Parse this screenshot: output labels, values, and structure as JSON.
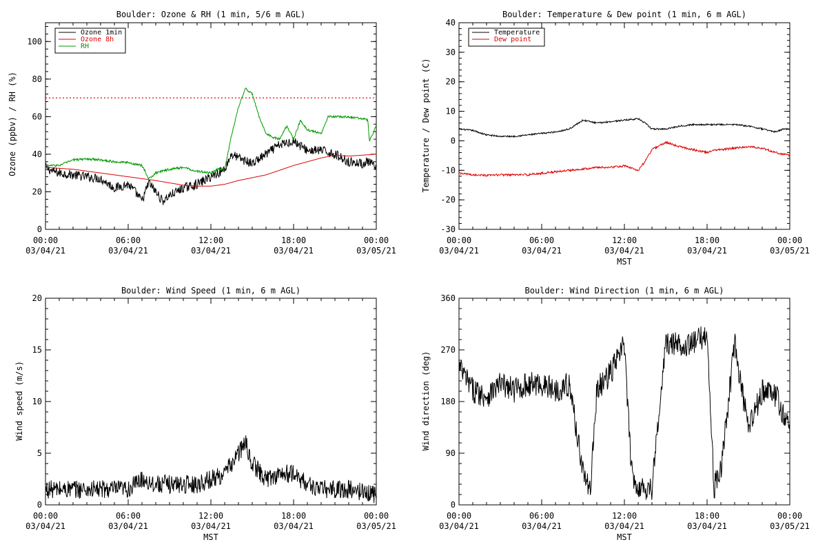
{
  "colors": {
    "black": "#000000",
    "red": "#dd0000",
    "green": "#009900",
    "threshold": "#ee0000"
  },
  "chart_data": [
    {
      "id": "ozone",
      "type": "line",
      "title": "Boulder: Ozone & RH (1 min, 5/6 m AGL)",
      "xlabel": "",
      "ylabel": "Ozone (ppbv) / RH (%)",
      "xlim": [
        0,
        24
      ],
      "ylim": [
        0,
        110
      ],
      "yticks": [
        0,
        20,
        40,
        60,
        80,
        100
      ],
      "xtick_positions": [
        0,
        6,
        12,
        18,
        24
      ],
      "xtick_labels": [
        [
          "00:00",
          "03/04/21"
        ],
        [
          "06:00",
          "03/04/21"
        ],
        [
          "12:00",
          "03/04/21"
        ],
        [
          "18:00",
          "03/04/21"
        ],
        [
          "00:00",
          "03/05/21"
        ]
      ],
      "legend": "top-left",
      "reference_line": {
        "y": 70,
        "color": "#ee0000",
        "style": "dotted"
      },
      "series": [
        {
          "name": "Ozone 1min",
          "color": "#000000",
          "noise": 2.5,
          "width": 1,
          "x": [
            0,
            0.5,
            1,
            2,
            3,
            4,
            5,
            6,
            6.5,
            7,
            7.5,
            8,
            8.5,
            9,
            9.5,
            10,
            11,
            12,
            13,
            13.5,
            14,
            15,
            16,
            17,
            18,
            19,
            20,
            21,
            22,
            23,
            23.5,
            24
          ],
          "y": [
            33,
            31,
            30,
            29,
            28,
            27,
            22,
            24,
            20,
            15,
            25,
            20,
            15,
            18,
            20,
            22,
            24,
            28,
            32,
            40,
            38,
            35,
            40,
            45,
            47,
            42,
            42,
            40,
            36,
            35,
            36,
            32
          ]
        },
        {
          "name": "Ozone 8h",
          "color": "#dd0000",
          "noise": 0,
          "width": 1,
          "x": [
            0,
            2,
            4,
            6,
            8,
            10,
            11,
            12,
            13,
            14,
            16,
            18,
            20,
            21,
            22,
            23,
            24
          ],
          "y": [
            33,
            32,
            30,
            28,
            26,
            23.5,
            23,
            23,
            24,
            26,
            29,
            34,
            38,
            39.5,
            39,
            39.5,
            40
          ]
        },
        {
          "name": "RH",
          "color": "#009900",
          "noise": 0.6,
          "width": 1,
          "x": [
            0,
            1,
            2,
            3,
            4,
            5,
            6,
            7,
            7.5,
            8,
            9,
            10,
            11,
            12,
            12.5,
            13,
            13.5,
            14,
            14.5,
            15,
            15.5,
            16,
            16.5,
            17,
            17.5,
            18,
            18.5,
            19,
            19.5,
            20,
            20.5,
            21,
            22,
            23,
            23.4,
            23.5,
            24
          ],
          "y": [
            34,
            34,
            37,
            37.5,
            37,
            36,
            35.5,
            34,
            27,
            30,
            32,
            33,
            31,
            30,
            32,
            32,
            50,
            65,
            75,
            72,
            60,
            51,
            49,
            48,
            55,
            48,
            58,
            53,
            52,
            51,
            60,
            60,
            60,
            59,
            58,
            47,
            55
          ]
        }
      ]
    },
    {
      "id": "temp",
      "type": "line",
      "title": "Boulder: Temperature & Dew point (1 min, 6 m AGL)",
      "xlabel": "MST",
      "ylabel": "Temperature / Dew point (C)",
      "xlim": [
        0,
        24
      ],
      "ylim": [
        -30,
        40
      ],
      "yticks": [
        -30,
        -20,
        -10,
        0,
        10,
        20,
        30,
        40
      ],
      "xtick_positions": [
        0,
        6,
        12,
        18,
        24
      ],
      "xtick_labels": [
        [
          "00:00",
          "03/04/21"
        ],
        [
          "06:00",
          "03/04/21"
        ],
        [
          "12:00",
          "03/04/21"
        ],
        [
          "18:00",
          "03/04/21"
        ],
        [
          "00:00",
          "03/05/21"
        ]
      ],
      "legend": "top-left",
      "series": [
        {
          "name": "Temperature",
          "color": "#000000",
          "noise": 0.25,
          "width": 1,
          "x": [
            0,
            1,
            2,
            3,
            4,
            5,
            6,
            7,
            8,
            9,
            10,
            11,
            12,
            13,
            13.5,
            14,
            15,
            16,
            17,
            18,
            19,
            20,
            21,
            22,
            23,
            23.5,
            24
          ],
          "y": [
            4,
            3.5,
            2,
            1.5,
            1.5,
            2,
            2.5,
            3,
            4,
            7,
            6,
            6.5,
            7,
            7.5,
            6,
            4,
            4,
            5,
            5.5,
            5.5,
            5.5,
            5.5,
            5,
            4,
            3,
            4,
            4
          ]
        },
        {
          "name": "Dew point",
          "color": "#dd0000",
          "noise": 0.35,
          "width": 1,
          "x": [
            0,
            1,
            2,
            3,
            4,
            5,
            6,
            7,
            8,
            9,
            10,
            11,
            12,
            13,
            13.5,
            14,
            15,
            16,
            17,
            18,
            18.5,
            19,
            20,
            21,
            22,
            23,
            24
          ],
          "y": [
            -11,
            -11.5,
            -11.8,
            -11.5,
            -11.5,
            -11.5,
            -11,
            -10.5,
            -10,
            -9.5,
            -9,
            -9,
            -8.5,
            -10,
            -7,
            -3,
            -0.5,
            -2,
            -3,
            -4,
            -3,
            -3,
            -2.5,
            -2,
            -2.5,
            -4,
            -5
          ]
        }
      ]
    },
    {
      "id": "wind",
      "type": "line",
      "title": "Boulder: Wind Speed (1 min, 6 m AGL)",
      "xlabel": "MST",
      "ylabel": "Wind speed (m/s)",
      "xlim": [
        0,
        24
      ],
      "ylim": [
        0,
        20
      ],
      "yticks": [
        0,
        5,
        10,
        15,
        20
      ],
      "xtick_positions": [
        0,
        6,
        12,
        18,
        24
      ],
      "xtick_labels": [
        [
          "00:00",
          "03/04/21"
        ],
        [
          "06:00",
          "03/04/21"
        ],
        [
          "12:00",
          "03/04/21"
        ],
        [
          "18:00",
          "03/04/21"
        ],
        [
          "00:00",
          "03/05/21"
        ]
      ],
      "series": [
        {
          "name": "",
          "color": "#000000",
          "noise": 0.9,
          "width": 1,
          "floor": 0,
          "x": [
            0,
            2,
            4,
            6,
            7,
            8,
            9,
            10,
            11,
            12,
            13,
            13.5,
            14,
            14.5,
            15,
            16,
            17,
            18,
            19,
            20,
            22,
            24
          ],
          "y": [
            1.5,
            1.5,
            1.5,
            1.5,
            2.5,
            2,
            2,
            2,
            2,
            2.5,
            3,
            4,
            5,
            6,
            4,
            2.5,
            3,
            3,
            2,
            1.5,
            1.5,
            1
          ]
        }
      ]
    },
    {
      "id": "winddir",
      "type": "line",
      "title": "Boulder: Wind Direction (1 min, 6 m AGL)",
      "xlabel": "MST",
      "ylabel": "Wind direction (deg)",
      "xlim": [
        0,
        24
      ],
      "ylim": [
        0,
        360
      ],
      "yticks": [
        0,
        90,
        180,
        270,
        360
      ],
      "xtick_positions": [
        0,
        6,
        12,
        18,
        24
      ],
      "xtick_labels": [
        [
          "00:00",
          "03/04/21"
        ],
        [
          "06:00",
          "03/04/21"
        ],
        [
          "12:00",
          "03/04/21"
        ],
        [
          "18:00",
          "03/04/21"
        ],
        [
          "00:00",
          "03/05/21"
        ]
      ],
      "series": [
        {
          "name": "",
          "color": "#000000",
          "noise": 22,
          "width": 1,
          "floor": 0,
          "ceil": 360,
          "x": [
            0,
            1,
            2,
            3,
            4,
            5,
            6,
            7,
            8,
            9,
            9.5,
            10,
            11,
            12,
            12.5,
            13,
            14,
            15,
            16,
            17,
            18,
            18.5,
            19,
            20,
            21,
            22,
            23,
            24
          ],
          "y": [
            240,
            200,
            190,
            210,
            200,
            210,
            210,
            200,
            210,
            60,
            20,
            200,
            230,
            280,
            60,
            30,
            30,
            280,
            280,
            280,
            300,
            30,
            60,
            280,
            130,
            200,
            190,
            130
          ]
        }
      ]
    }
  ]
}
